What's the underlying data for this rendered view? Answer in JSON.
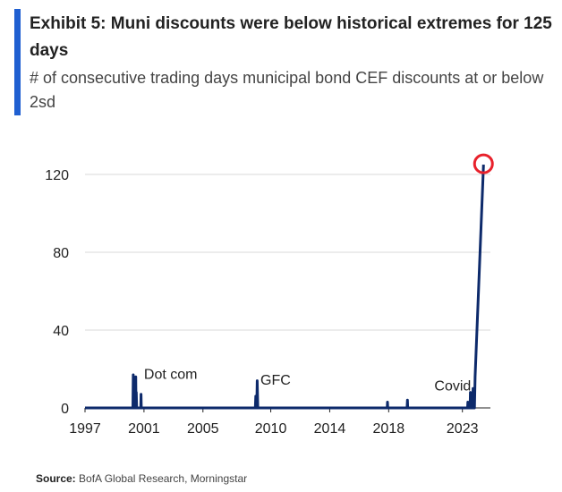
{
  "header": {
    "title": "Exhibit 5: Muni discounts were below historical extremes for 125 days",
    "subtitle": "# of consecutive trading days municipal bond CEF discounts at or below 2sd"
  },
  "colors": {
    "accent": "#1f5fd1",
    "series": "#0d2a6b",
    "highlight": "#e8212b",
    "grid": "#d9d9d9",
    "axis": "#222222"
  },
  "chart_data": {
    "type": "line",
    "title": "Exhibit 5: Muni discounts were below historical extremes for 125 days",
    "subtitle": "# of consecutive trading days municipal bond CEF discounts at or below 2sd",
    "xlabel": "",
    "ylabel": "",
    "xlim": [
      1997,
      2024.5
    ],
    "ylim": [
      0,
      130
    ],
    "grid": true,
    "legend": "none",
    "x_ticks": [
      "1997",
      "2001",
      "2005",
      "2010",
      "2014",
      "2018",
      "2023"
    ],
    "x_tick_positions": [
      1997,
      2001,
      2005,
      2009.6,
      2013.6,
      2017.6,
      2022.6
    ],
    "y_ticks": [
      0,
      40,
      80,
      120
    ],
    "series": [
      {
        "name": "Consecutive trading days at or below 2sd",
        "points": [
          [
            1997,
            0
          ],
          [
            2000.25,
            0
          ],
          [
            2000.27,
            17
          ],
          [
            2000.29,
            0
          ],
          [
            2000.31,
            16
          ],
          [
            2000.33,
            0
          ],
          [
            2000.42,
            0
          ],
          [
            2000.44,
            16
          ],
          [
            2000.46,
            0
          ],
          [
            2000.48,
            8
          ],
          [
            2000.5,
            0
          ],
          [
            2000.78,
            0
          ],
          [
            2000.8,
            7
          ],
          [
            2000.82,
            0
          ],
          [
            2008.55,
            0
          ],
          [
            2008.58,
            6
          ],
          [
            2008.6,
            0
          ],
          [
            2008.65,
            0
          ],
          [
            2008.68,
            14
          ],
          [
            2008.72,
            0
          ],
          [
            2017.5,
            0
          ],
          [
            2017.52,
            3
          ],
          [
            2017.54,
            0
          ],
          [
            2018.85,
            0
          ],
          [
            2018.87,
            4
          ],
          [
            2018.89,
            0
          ],
          [
            2022.95,
            0
          ],
          [
            2022.97,
            3
          ],
          [
            2022.99,
            0
          ],
          [
            2023.12,
            0
          ],
          [
            2023.14,
            8
          ],
          [
            2023.18,
            0
          ],
          [
            2023.3,
            0
          ],
          [
            2023.32,
            10
          ],
          [
            2023.36,
            0
          ],
          [
            2023.42,
            0
          ],
          [
            2023.46,
            16
          ],
          [
            2024.03,
            125
          ]
        ]
      }
    ],
    "annotations": [
      {
        "text": "Dot com",
        "x": 2001.0,
        "y": 15
      },
      {
        "text": "GFC",
        "x": 2008.9,
        "y": 12
      },
      {
        "text": "Covid",
        "x": 2020.7,
        "y": 9
      }
    ],
    "highlight": {
      "x": 2024.03,
      "y": 125,
      "shape": "circle"
    }
  },
  "source": {
    "label": "Source:",
    "text": "BofA Global Research, Morningstar"
  }
}
